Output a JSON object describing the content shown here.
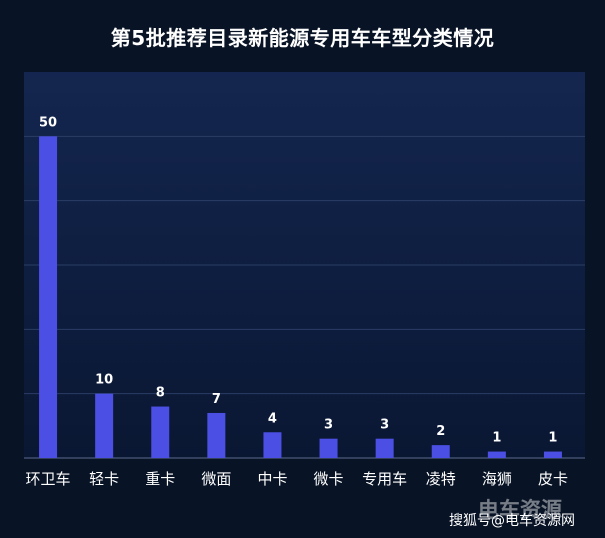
{
  "chart_data": {
    "type": "bar",
    "title": "第5批推荐目录新能源专用车车型分类情况",
    "categories": [
      "环卫车",
      "轻卡",
      "重卡",
      "微面",
      "中卡",
      "微卡",
      "专用车",
      "凌特",
      "海狮",
      "皮卡"
    ],
    "values": [
      50,
      10,
      8,
      7,
      4,
      3,
      3,
      2,
      1,
      1
    ],
    "ylim": [
      0,
      60
    ],
    "grid": true,
    "bar_color": "#4b4fe4"
  },
  "watermark": {
    "logo_text": "电车资源",
    "source_text": "搜狐号@电车资源网"
  }
}
